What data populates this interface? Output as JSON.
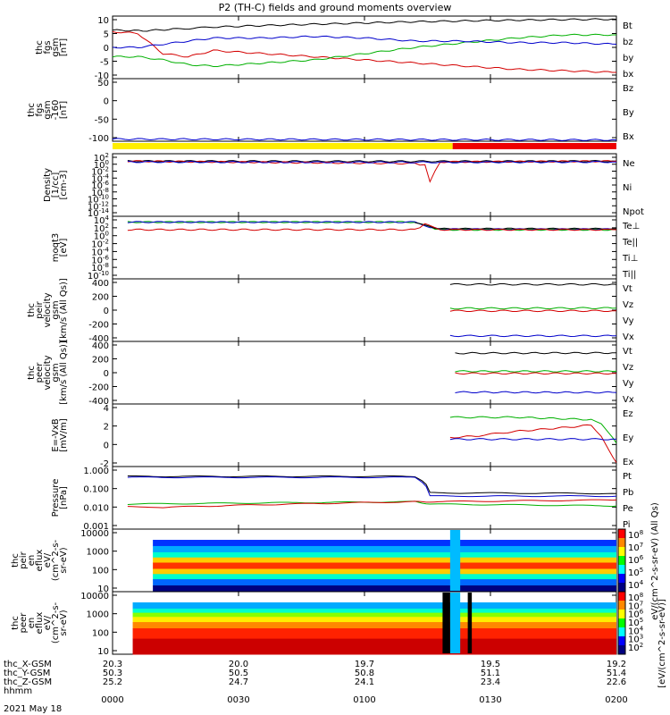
{
  "chart_data": {
    "type": "line",
    "title": "P2 (TH-C) fields and ground moments overview",
    "x_time_ticks": [
      "0000",
      "0030",
      "0100",
      "0130",
      "0200"
    ],
    "date_label": "2021 May 18",
    "ephemeris": [
      {
        "label": "thc_X-GSM",
        "values": [
          "20.3",
          "20.0",
          "19.7",
          "19.5",
          "19.2"
        ]
      },
      {
        "label": "thc_Y-GSM",
        "values": [
          "50.3",
          "50.5",
          "50.8",
          "51.1",
          "51.4"
        ]
      },
      {
        "label": "thc_Z-GSM",
        "values": [
          "25.2",
          "24.7",
          "24.1",
          "23.4",
          "22.6"
        ]
      },
      {
        "label": "hhmm",
        "values": [
          "",
          "",
          "",
          "",
          ""
        ]
      }
    ],
    "panels": [
      {
        "id": "fgs",
        "ylabel": "thc\nfgs\ngsm\n[nT]",
        "yticks": [
          "10",
          "5",
          "0",
          "-5",
          "-10"
        ],
        "legend": [
          {
            "t": "Bt",
            "c": "#000000"
          },
          {
            "t": "bz",
            "c": "#d40000"
          },
          {
            "t": "by",
            "c": "#00b000"
          },
          {
            "t": "bx",
            "c": "#0000cc"
          }
        ],
        "series": [
          {
            "name": "Bt",
            "color": "#000000",
            "x": [
              0,
              0.06,
              0.12,
              0.2,
              0.3,
              0.45,
              0.6,
              0.75,
              0.9,
              1.0
            ],
            "y": [
              5.5,
              5.3,
              5.8,
              6.5,
              7,
              7.6,
              8.2,
              8.6,
              8.9,
              9
            ]
          },
          {
            "name": "bz",
            "color": "#d40000",
            "x": [
              0,
              0.05,
              0.1,
              0.15,
              0.2,
              0.3,
              0.4,
              0.5,
              0.6,
              0.7,
              0.8,
              0.9,
              1.0
            ],
            "y": [
              5,
              4.5,
              -2,
              -3,
              -1,
              -2,
              -3,
              -4,
              -5,
              -6,
              -7,
              -7.5,
              -8
            ]
          },
          {
            "name": "by",
            "color": "#00b000",
            "x": [
              0,
              0.05,
              0.1,
              0.15,
              0.2,
              0.3,
              0.4,
              0.5,
              0.6,
              0.7,
              0.8,
              0.9,
              1.0
            ],
            "y": [
              -3,
              -3,
              -4,
              -5.5,
              -6,
              -5,
              -4,
              -2,
              0,
              1.5,
              3,
              4,
              4
            ]
          },
          {
            "name": "bx",
            "color": "#0000cc",
            "x": [
              0,
              0.05,
              0.1,
              0.15,
              0.2,
              0.3,
              0.4,
              0.5,
              0.6,
              0.7,
              0.8,
              0.9,
              1.0
            ],
            "y": [
              0,
              0,
              1,
              2,
              3,
              3,
              3.5,
              3,
              2,
              2,
              1.5,
              1.5,
              1
            ]
          }
        ],
        "ylim": [
          -10,
          10
        ]
      },
      {
        "id": "fgs-gsm",
        "ylabel": "thc\nfgs\ngsm\n-160\n[nT]",
        "yticks": [
          "50",
          "0",
          "-50",
          "-100"
        ],
        "legend": [
          {
            "t": "Bz",
            "c": "#d40000"
          },
          {
            "t": "By",
            "c": "#00b000"
          },
          {
            "t": "Bx",
            "c": "#0000cc"
          }
        ],
        "series": [
          {
            "name": "Bx",
            "color": "#0000cc",
            "x": [
              0,
              1
            ],
            "y": [
              -118,
              -121
            ]
          }
        ],
        "ylim": [
          -125,
          80
        ]
      },
      {
        "id": "density",
        "ylabel": "Density\n[1/cc]\n[cm-3]",
        "yticks": [
          "10^2",
          "10^0",
          "10^-2",
          "10^-4",
          "10^-6",
          "10^-8",
          "10^-10",
          "10^-12",
          "10^-14"
        ],
        "legend": [
          {
            "t": "Ne",
            "c": "#d40000"
          },
          {
            "t": "Ni",
            "c": "#000000"
          },
          {
            "t": "Npot",
            "c": "#0000cc"
          }
        ],
        "series": [
          {
            "name": "Ni",
            "color": "#000000",
            "x": [
              0.03,
              0.6,
              1.0
            ],
            "y": [
              0.1,
              0.05,
              0.1
            ]
          },
          {
            "name": "Ne",
            "color": "#d40000",
            "x": [
              0.03,
              0.6,
              0.62,
              0.63,
              0.65,
              1.0
            ],
            "y": [
              0.1,
              -0.5,
              -1,
              -5,
              -0.1,
              0.1
            ]
          },
          {
            "name": "Npot",
            "color": "#0000cc",
            "x": [
              0.03,
              0.6,
              1.0
            ],
            "y": [
              -0.1,
              -0.2,
              -0.1
            ]
          }
        ],
        "ylim": [
          -14,
          2
        ]
      },
      {
        "id": "temp",
        "ylabel": "moqt3\n[eV]",
        "yticks": [
          "10^4",
          "10^2",
          "10^0",
          "10^-2",
          "10^-4",
          "10^-6",
          "10^-8",
          "10^-10"
        ],
        "legend": [
          {
            "t": "Te⊥",
            "c": "#d40000"
          },
          {
            "t": "Te||",
            "c": "#000000"
          },
          {
            "t": "Ti⊥",
            "c": "#0000cc"
          },
          {
            "t": "Ti||",
            "c": "#00b000"
          }
        ],
        "series": [
          {
            "name": "Ti||",
            "color": "#00b000",
            "x": [
              0.03,
              0.6,
              0.63,
              0.65,
              1.0
            ],
            "y": [
              2.7,
              2.7,
              1.5,
              1.0,
              1.0
            ]
          },
          {
            "name": "Ti⊥",
            "color": "#0000cc",
            "x": [
              0.03,
              0.6,
              0.63,
              0.65,
              1.0
            ],
            "y": [
              2.7,
              2.7,
              1.6,
              1.1,
              1.1
            ]
          },
          {
            "name": "Te||",
            "color": "#000000",
            "x": [
              0.6,
              0.63,
              0.65,
              1.0
            ],
            "y": [
              2.7,
              1.6,
              1.2,
              1.2
            ]
          },
          {
            "name": "Te⊥",
            "color": "#d40000",
            "x": [
              0.03,
              0.6,
              0.62,
              0.65,
              1.0
            ],
            "y": [
              1.0,
              1.0,
              2.2,
              1.0,
              1.0
            ]
          }
        ],
        "ylim": [
          -10,
          4
        ]
      },
      {
        "id": "peir-vel",
        "ylabel": "thc\npeir\nvelocity\ngsm\n[km/s (All Qs)]",
        "yticks": [
          "400",
          "200",
          "0",
          "-200",
          "-400"
        ],
        "legend": [
          {
            "t": "Vt",
            "c": "#000000"
          },
          {
            "t": "Vz",
            "c": "#d40000"
          },
          {
            "t": "Vy",
            "c": "#00b000"
          },
          {
            "t": "Vx",
            "c": "#0000cc"
          }
        ],
        "series": [
          {
            "name": "Vt",
            "color": "#000000",
            "x": [
              0.67,
              1.0
            ],
            "y": [
              370,
              370
            ]
          },
          {
            "name": "Vy",
            "color": "#00b000",
            "x": [
              0.67,
              1.0
            ],
            "y": [
              25,
              30
            ]
          },
          {
            "name": "Vz",
            "color": "#d40000",
            "x": [
              0.67,
              1.0
            ],
            "y": [
              -10,
              -10
            ]
          },
          {
            "name": "Vx",
            "color": "#0000cc",
            "x": [
              0.67,
              1.0
            ],
            "y": [
              -370,
              -370
            ]
          }
        ],
        "ylim": [
          -450,
          450
        ]
      },
      {
        "id": "peer-vel",
        "ylabel": "thc\npeer\nvelocity\ngsm\n[km/s (All Qs)]",
        "yticks": [
          "400",
          "200",
          "0",
          "-200",
          "-400"
        ],
        "legend": [
          {
            "t": "Vt",
            "c": "#000000"
          },
          {
            "t": "Vz",
            "c": "#d40000"
          },
          {
            "t": "Vy",
            "c": "#00b000"
          },
          {
            "t": "Vx",
            "c": "#0000cc"
          }
        ],
        "series": [
          {
            "name": "Vt",
            "color": "#000000",
            "x": [
              0.68,
              1.0
            ],
            "y": [
              280,
              285
            ]
          },
          {
            "name": "Vy",
            "color": "#00b000",
            "x": [
              0.68,
              1.0
            ],
            "y": [
              20,
              20
            ]
          },
          {
            "name": "Vz",
            "color": "#d40000",
            "x": [
              0.68,
              1.0
            ],
            "y": [
              -10,
              -10
            ]
          },
          {
            "name": "Vx",
            "color": "#0000cc",
            "x": [
              0.68,
              1.0
            ],
            "y": [
              -280,
              -285
            ]
          }
        ],
        "ylim": [
          -450,
          450
        ]
      },
      {
        "id": "efield",
        "ylabel": "E=-VxB\n[mV/m]",
        "yticks": [
          "4",
          "2",
          "0",
          "-2"
        ],
        "legend": [
          {
            "t": "Ez",
            "c": "#d40000"
          },
          {
            "t": "Ey",
            "c": "#00b000"
          },
          {
            "t": "Ex",
            "c": "#0000cc"
          }
        ],
        "series": [
          {
            "name": "Ey",
            "color": "#00b000",
            "x": [
              0.67,
              0.8,
              0.95,
              0.97,
              1.0
            ],
            "y": [
              2.8,
              2.8,
              2.5,
              2.0,
              -0.5
            ]
          },
          {
            "name": "Ez",
            "color": "#d40000",
            "x": [
              0.67,
              0.72,
              0.8,
              0.9,
              0.95,
              0.97,
              1.0
            ],
            "y": [
              0.2,
              0.4,
              1.0,
              1.5,
              1.8,
              0.3,
              -3
            ]
          },
          {
            "name": "Ex",
            "color": "#0000cc",
            "x": [
              0.67,
              1.0
            ],
            "y": [
              0,
              0
            ]
          }
        ],
        "ylim": [
          -3.5,
          4.5
        ]
      },
      {
        "id": "pressure",
        "ylabel": "Pressure\n[nPa]",
        "yticks": [
          "1.000",
          "0.100",
          "0.010",
          "0.001"
        ],
        "legend": [
          {
            "t": "Pt",
            "c": "#000000"
          },
          {
            "t": "Pb",
            "c": "#d40000"
          },
          {
            "t": "Pe",
            "c": "#00b000"
          },
          {
            "t": "Pi",
            "c": "#0000cc"
          }
        ],
        "series": [
          {
            "name": "Pt",
            "color": "#000000",
            "x": [
              0.03,
              0.6,
              0.63,
              1.0
            ],
            "y": [
              0.45,
              0.45,
              0.06,
              0.055
            ]
          },
          {
            "name": "Pi",
            "color": "#0000cc",
            "x": [
              0.03,
              0.6,
              0.63,
              1.0
            ],
            "y": [
              0.4,
              0.4,
              0.04,
              0.04
            ]
          },
          {
            "name": "Pe",
            "color": "#00b000",
            "x": [
              0.03,
              0.6,
              0.63,
              1.0
            ],
            "y": [
              0.015,
              0.02,
              0.015,
              0.012
            ]
          },
          {
            "name": "Pb",
            "color": "#d40000",
            "x": [
              0.03,
              0.1,
              0.6,
              0.63,
              1.0
            ],
            "y": [
              0.012,
              0.01,
              0.02,
              0.02,
              0.025
            ]
          }
        ],
        "ylim": [
          0.0007,
          1.5
        ]
      },
      {
        "id": "peir-en",
        "ylabel": "thc\npeir\nen\neflux\neV/\n(cm^2-s-\nsr-eV)",
        "yticks": [
          "10000",
          "1000",
          "100",
          "10"
        ],
        "colorbar": [
          "10^8",
          "10^7",
          "10^6",
          "10^5",
          "10^4"
        ]
      },
      {
        "id": "peer-en",
        "ylabel": "thc\npeer\nen\neflux\neV/\n(cm^2-s-\nsr-eV)",
        "yticks": [
          "10000",
          "1000",
          "100",
          "10"
        ],
        "colorbar": [
          "10^8",
          "10^7",
          "10^6",
          "10^5",
          "10^4",
          "10^3",
          "10^2"
        ]
      }
    ],
    "colorbar_label": "[eV/(cm^2-s-sr-eV)]",
    "colorbar_inner_label": "eV/(cm^2-s-sr-eV) (All Qs)"
  }
}
